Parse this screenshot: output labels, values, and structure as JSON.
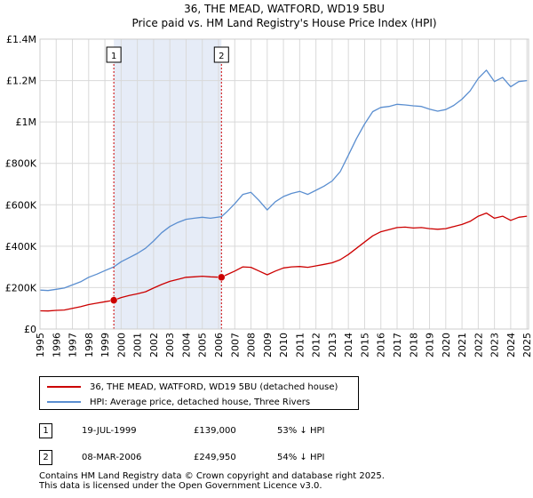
{
  "chart_data": {
    "type": "line",
    "title": "36, THE MEAD, WATFORD, WD19 5BU",
    "subtitle": "Price paid vs. HM Land Registry's House Price Index (HPI)",
    "xlim": [
      1995,
      2025.1
    ],
    "ylim": [
      0,
      1400000
    ],
    "y_ticks": [
      0,
      200000,
      400000,
      600000,
      800000,
      1000000,
      1200000,
      1400000
    ],
    "y_tick_labels": [
      "£0",
      "£200K",
      "£400K",
      "£600K",
      "£800K",
      "£1M",
      "£1.2M",
      "£1.4M"
    ],
    "x_ticks": [
      1995,
      1996,
      1997,
      1998,
      1999,
      2000,
      2001,
      2002,
      2003,
      2004,
      2005,
      2006,
      2007,
      2008,
      2009,
      2010,
      2011,
      2012,
      2013,
      2014,
      2015,
      2016,
      2017,
      2018,
      2019,
      2020,
      2021,
      2022,
      2023,
      2024,
      2025
    ],
    "x_tick_labels": [
      "1995",
      "1996",
      "1997",
      "1998",
      "1999",
      "2000",
      "2001",
      "2002",
      "2003",
      "2004",
      "2005",
      "2006",
      "2007",
      "2008",
      "2009",
      "2010",
      "2011",
      "2012",
      "2013",
      "2014",
      "2015",
      "2016",
      "2017",
      "2018",
      "2019",
      "2020",
      "2021",
      "2022",
      "2023",
      "2024",
      "2025"
    ],
    "grid": true,
    "shaded_band": [
      1999.55,
      2006.18
    ],
    "series": [
      {
        "name": "36, THE MEAD, WATFORD, WD19 5BU (detached house)",
        "color": "#cc0000",
        "x": [
          1995.0,
          1995.5,
          1996.0,
          1996.5,
          1997.0,
          1997.5,
          1998.0,
          1998.5,
          1999.0,
          1999.55,
          2000.0,
          2000.5,
          2001.0,
          2001.5,
          2002.0,
          2002.5,
          2003.0,
          2003.5,
          2004.0,
          2004.5,
          2005.0,
          2005.5,
          2006.18,
          2006.5,
          2007.0,
          2007.5,
          2008.0,
          2008.5,
          2009.0,
          2009.5,
          2010.0,
          2010.5,
          2011.0,
          2011.5,
          2012.0,
          2012.5,
          2013.0,
          2013.5,
          2014.0,
          2014.5,
          2015.0,
          2015.5,
          2016.0,
          2016.5,
          2017.0,
          2017.5,
          2018.0,
          2018.5,
          2019.0,
          2019.5,
          2020.0,
          2020.5,
          2021.0,
          2021.5,
          2022.0,
          2022.5,
          2023.0,
          2023.5,
          2024.0,
          2024.5,
          2025.0
        ],
        "values": [
          88000,
          87000,
          90000,
          92000,
          100000,
          108000,
          118000,
          125000,
          132000,
          139000,
          152000,
          162000,
          170000,
          180000,
          198000,
          215000,
          230000,
          240000,
          250000,
          252000,
          255000,
          252000,
          249950,
          262000,
          280000,
          300000,
          298000,
          280000,
          262000,
          280000,
          295000,
          300000,
          302000,
          298000,
          305000,
          312000,
          320000,
          335000,
          360000,
          390000,
          420000,
          450000,
          470000,
          480000,
          490000,
          492000,
          488000,
          490000,
          485000,
          482000,
          485000,
          495000,
          505000,
          520000,
          545000,
          560000,
          535000,
          545000,
          525000,
          540000,
          545000
        ]
      },
      {
        "name": "HPI: Average price, detached house, Three Rivers",
        "color": "#5a8ed0",
        "x": [
          1995.0,
          1995.5,
          1996.0,
          1996.5,
          1997.0,
          1997.5,
          1998.0,
          1998.5,
          1999.0,
          1999.55,
          2000.0,
          2000.5,
          2001.0,
          2001.5,
          2002.0,
          2002.5,
          2003.0,
          2003.5,
          2004.0,
          2004.5,
          2005.0,
          2005.5,
          2006.18,
          2006.5,
          2007.0,
          2007.5,
          2008.0,
          2008.5,
          2009.0,
          2009.5,
          2010.0,
          2010.5,
          2011.0,
          2011.5,
          2012.0,
          2012.5,
          2013.0,
          2013.5,
          2014.0,
          2014.5,
          2015.0,
          2015.5,
          2016.0,
          2016.5,
          2017.0,
          2017.5,
          2018.0,
          2018.5,
          2019.0,
          2019.5,
          2020.0,
          2020.5,
          2021.0,
          2021.5,
          2022.0,
          2022.5,
          2023.0,
          2023.5,
          2024.0,
          2024.5,
          2025.0
        ],
        "values": [
          188000,
          186000,
          192000,
          198000,
          213000,
          228000,
          250000,
          265000,
          282000,
          300000,
          325000,
          345000,
          365000,
          390000,
          425000,
          465000,
          495000,
          515000,
          530000,
          535000,
          540000,
          535000,
          543000,
          565000,
          605000,
          650000,
          660000,
          620000,
          575000,
          615000,
          640000,
          655000,
          665000,
          650000,
          670000,
          690000,
          715000,
          760000,
          840000,
          920000,
          990000,
          1050000,
          1070000,
          1075000,
          1085000,
          1082000,
          1078000,
          1075000,
          1062000,
          1052000,
          1060000,
          1080000,
          1110000,
          1150000,
          1210000,
          1250000,
          1195000,
          1215000,
          1170000,
          1195000,
          1200000
        ]
      }
    ],
    "markers": [
      {
        "label": "1",
        "x": 1999.55,
        "y": 139000
      },
      {
        "label": "2",
        "x": 2006.18,
        "y": 249950
      }
    ]
  },
  "legend": {
    "property_label": "36, THE MEAD, WATFORD, WD19 5BU (detached house)",
    "hpi_label": "HPI: Average price, detached house, Three Rivers"
  },
  "transactions": [
    {
      "num": "1",
      "date": "19-JUL-1999",
      "price": "£139,000",
      "hpi": "53% ↓ HPI"
    },
    {
      "num": "2",
      "date": "08-MAR-2006",
      "price": "£249,950",
      "hpi": "54% ↓ HPI"
    }
  ],
  "footer": {
    "line1": "Contains HM Land Registry data © Crown copyright and database right 2025.",
    "line2": "This data is licensed under the Open Government Licence v3.0."
  },
  "colors": {
    "property": "#cc0000",
    "hpi": "#5a8ed0",
    "band": "#e6ecf7",
    "grid": "#d9d9d9"
  }
}
